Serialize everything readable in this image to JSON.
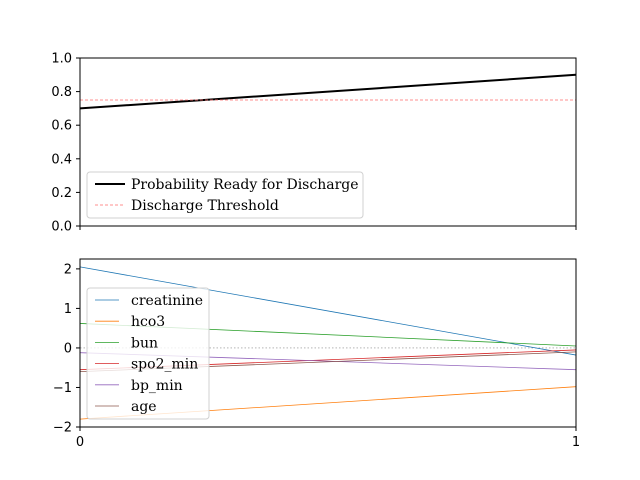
{
  "chart_data": [
    {
      "type": "line",
      "x": [
        0,
        1
      ],
      "ylim": [
        0.0,
        1.0
      ],
      "xlim": [
        0,
        1
      ],
      "yticks": [
        "0.0",
        "0.2",
        "0.4",
        "0.6",
        "0.8",
        "1.0"
      ],
      "ytick_values": [
        0.0,
        0.2,
        0.4,
        0.6,
        0.8,
        1.0
      ],
      "xtick_labels_shown": false,
      "grid": false,
      "legend_position": "lower-left",
      "series": [
        {
          "name": "Probability Ready for Discharge",
          "values": [
            0.7,
            0.9
          ],
          "color": "#000000",
          "style": "solid"
        },
        {
          "name": "Discharge Threshold",
          "values": [
            0.75,
            0.75
          ],
          "color": "#ff6b6b",
          "style": "dashed"
        }
      ]
    },
    {
      "type": "line",
      "x": [
        0,
        1
      ],
      "ylim": [
        -2.0,
        2.25
      ],
      "xlim": [
        0,
        1
      ],
      "yticks": [
        "−2",
        "−1",
        "0",
        "1",
        "2"
      ],
      "ytick_values": [
        -2,
        -1,
        0,
        1,
        2
      ],
      "xticks": [
        "0",
        "1"
      ],
      "xtick_values": [
        0,
        1
      ],
      "grid": false,
      "legend_position": "lower-left",
      "reference_line": {
        "value": 0,
        "color": "#888888",
        "style": "dotted"
      },
      "series": [
        {
          "name": "creatinine",
          "values": [
            2.05,
            -0.18
          ],
          "color": "#1f77b4"
        },
        {
          "name": "hco3",
          "values": [
            -1.8,
            -0.98
          ],
          "color": "#ff7f0e"
        },
        {
          "name": "bun",
          "values": [
            0.62,
            0.05
          ],
          "color": "#2ca02c"
        },
        {
          "name": "spo2_min",
          "values": [
            -0.55,
            -0.05
          ],
          "color": "#d62728"
        },
        {
          "name": "bp_min",
          "values": [
            -0.12,
            -0.55
          ],
          "color": "#9467bd"
        },
        {
          "name": "age",
          "values": [
            -0.6,
            -0.1
          ],
          "color": "#8c564b"
        }
      ]
    }
  ]
}
